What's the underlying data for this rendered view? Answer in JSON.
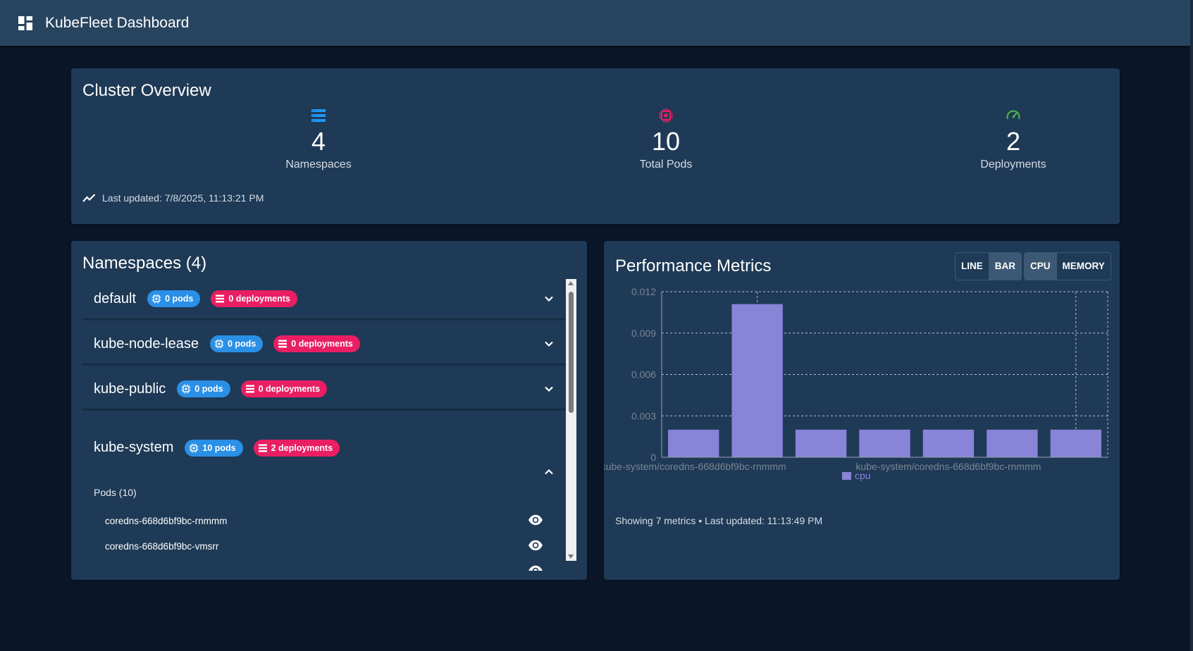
{
  "appbar": {
    "title": "KubeFleet Dashboard",
    "icon": "dashboard-icon"
  },
  "overview": {
    "title": "Cluster Overview",
    "stats": {
      "namespaces": {
        "value": "4",
        "label": "Namespaces",
        "icon": "namespace-list-icon",
        "color": "#2196f3"
      },
      "pods": {
        "value": "10",
        "label": "Total Pods",
        "icon": "cpu-chip-icon",
        "color": "#e91e63"
      },
      "deployments": {
        "value": "2",
        "label": "Deployments",
        "icon": "speedometer-icon",
        "color": "#4caf50"
      }
    },
    "last_updated": "Last updated: 7/8/2025, 11:13:21 PM"
  },
  "namespaces": {
    "title": "Namespaces (4)",
    "items": [
      {
        "name": "default",
        "pods": "0 pods",
        "deployments": "0 deployments"
      },
      {
        "name": "kube-node-lease",
        "pods": "0 pods",
        "deployments": "0 deployments"
      },
      {
        "name": "kube-public",
        "pods": "0 pods",
        "deployments": "0 deployments"
      },
      {
        "name": "kube-system",
        "pods": "10 pods",
        "deployments": "2 deployments"
      }
    ],
    "expanded": {
      "pods_title": "Pods (10)",
      "pods": [
        "coredns-668d6bf9bc-rnmmm",
        "coredns-668d6bf9bc-vmsrr"
      ]
    }
  },
  "metrics": {
    "title": "Performance Metrics",
    "chart_mode": {
      "line": "LINE",
      "bar": "BAR",
      "selected": "BAR"
    },
    "metric_mode": {
      "cpu": "CPU",
      "memory": "MEMORY",
      "selected": "CPU"
    },
    "footer": "Showing 7 metrics • Last updated: 11:13:49 PM"
  },
  "chart_data": {
    "type": "bar",
    "categories": [
      "kube-system/coredns-668d6bf9bc-rnmmm",
      "",
      "",
      "",
      "kube-system/coredns-668d6bf9bc-rnmmm",
      "",
      ""
    ],
    "series": [
      {
        "name": "cpu",
        "color": "#8884d8",
        "values": [
          0.002,
          0.0111,
          0.002,
          0.002,
          0.002,
          0.002,
          0.002
        ]
      }
    ],
    "yticks": [
      "0",
      "0.003",
      "0.006",
      "0.009",
      "0.012"
    ],
    "ylim": [
      0,
      0.012
    ],
    "grid": true,
    "legend": "bottom-center"
  }
}
